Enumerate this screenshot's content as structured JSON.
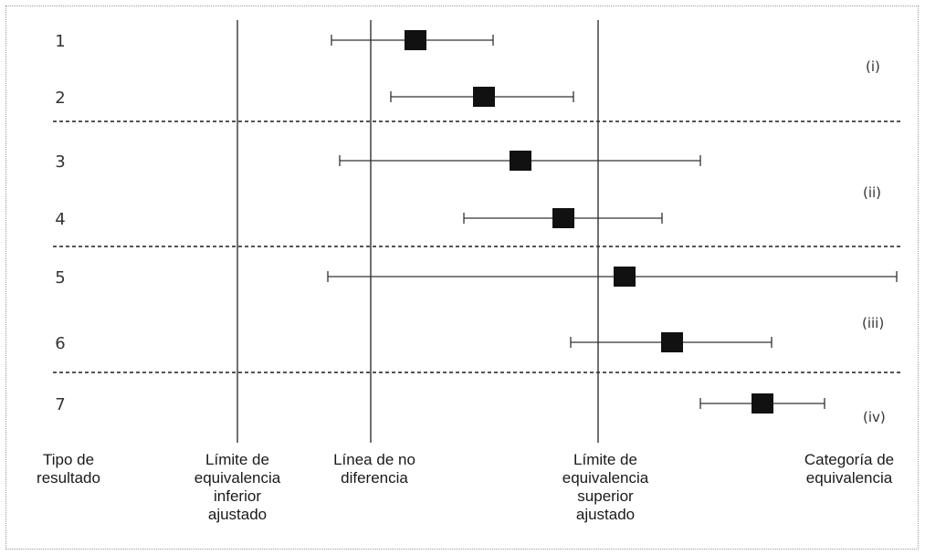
{
  "chart_data": {
    "type": "forest",
    "rows": [
      {
        "label": "1",
        "estimate": 455,
        "lower": 363,
        "upper": 540
      },
      {
        "label": "2",
        "estimate": 530,
        "lower": 428,
        "upper": 628
      },
      {
        "label": "3",
        "estimate": 570,
        "lower": 372,
        "upper": 767
      },
      {
        "label": "4",
        "estimate": 617,
        "lower": 508,
        "upper": 725
      },
      {
        "label": "5",
        "estimate": 684,
        "lower": 359,
        "upper": 982
      },
      {
        "label": "6",
        "estimate": 736,
        "lower": 625,
        "upper": 845
      },
      {
        "label": "7",
        "estimate": 835,
        "lower": 767,
        "upper": 903
      }
    ],
    "reference_lines": [
      {
        "name": "lower_equivalence",
        "value": 260
      },
      {
        "name": "no_difference",
        "value": 406
      },
      {
        "name": "upper_equivalence",
        "value": 655
      }
    ],
    "categories": [
      "(i)",
      "(ii)",
      "(iii)",
      "(iv)"
    ],
    "bottom_labels": {
      "result_type": [
        "Tipo de",
        "resultado"
      ],
      "lower_limit": [
        "Límite de",
        "equivalencia",
        "inferior",
        "ajustado"
      ],
      "no_difference": [
        "Línea de no",
        "diferencia"
      ],
      "upper_limit": [
        "Límite de",
        "equivalencia",
        "superior",
        "ajustado"
      ],
      "category": [
        "Categoría de",
        "equivalencia"
      ]
    }
  }
}
